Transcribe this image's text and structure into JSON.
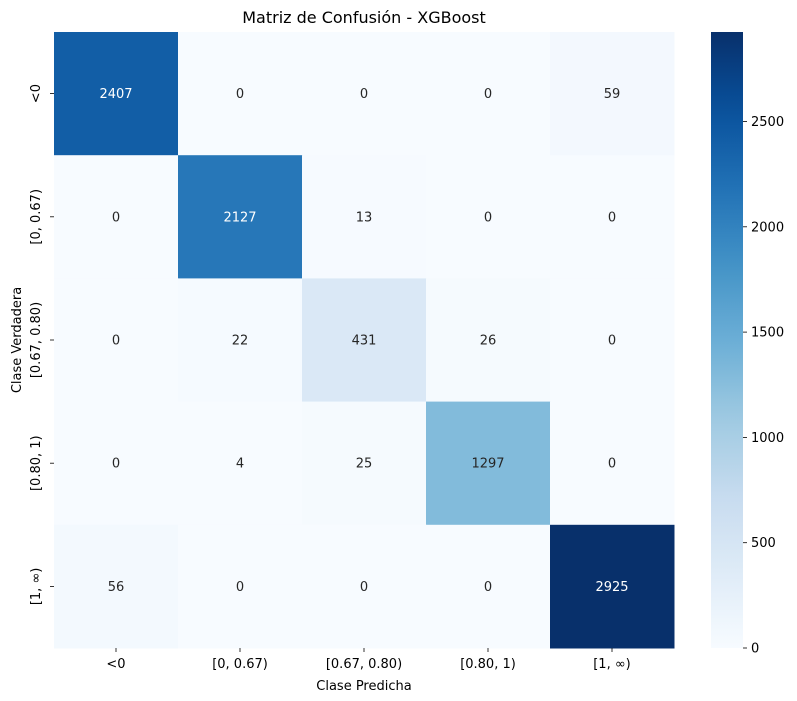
{
  "chart_data": {
    "type": "heatmap",
    "title": "Matriz de Confusión - XGBoost",
    "xlabel": "Clase Predicha",
    "ylabel": "Clase Verdadera",
    "x_categories": [
      "<0",
      "[0, 0.67)",
      "[0.67, 0.80)",
      "[0.80, 1)",
      "[1, ∞)"
    ],
    "y_categories": [
      "<0",
      "[0, 0.67)",
      "[0.67, 0.80)",
      "[0.80, 1)",
      "[1, ∞)"
    ],
    "values": [
      [
        2407,
        0,
        0,
        0,
        59
      ],
      [
        0,
        2127,
        13,
        0,
        0
      ],
      [
        0,
        22,
        431,
        26,
        0
      ],
      [
        0,
        4,
        25,
        1297,
        0
      ],
      [
        56,
        0,
        0,
        0,
        2925
      ]
    ],
    "colormap": "Blues",
    "color_range": [
      0,
      2925
    ],
    "colorbar_ticks": [
      0,
      500,
      1000,
      1500,
      2000,
      2500
    ],
    "grid": false
  }
}
